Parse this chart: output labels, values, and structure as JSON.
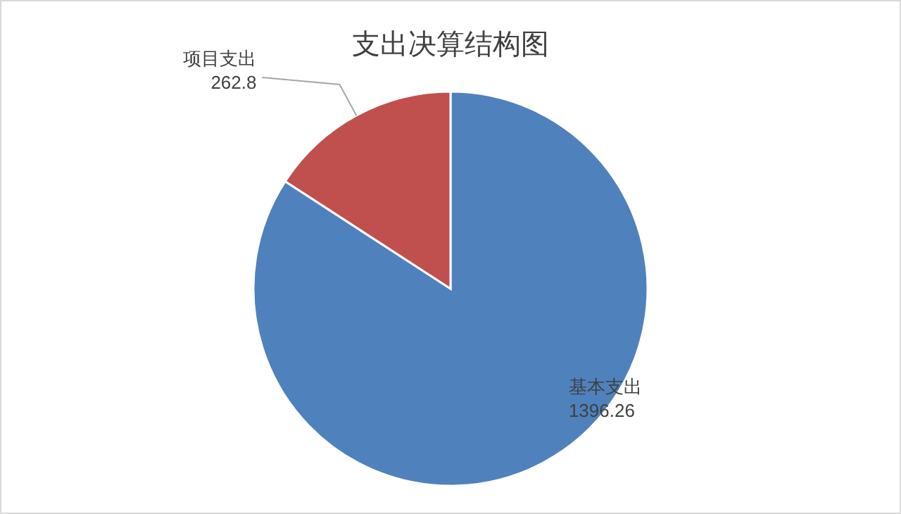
{
  "chart_data": {
    "type": "pie",
    "title": "支出决算结构图",
    "categories": [
      "基本支出",
      "项目支出"
    ],
    "values": [
      1396.26,
      262.8
    ],
    "colors": [
      "#4f81bd",
      "#c0504d"
    ],
    "data_labels": true
  }
}
